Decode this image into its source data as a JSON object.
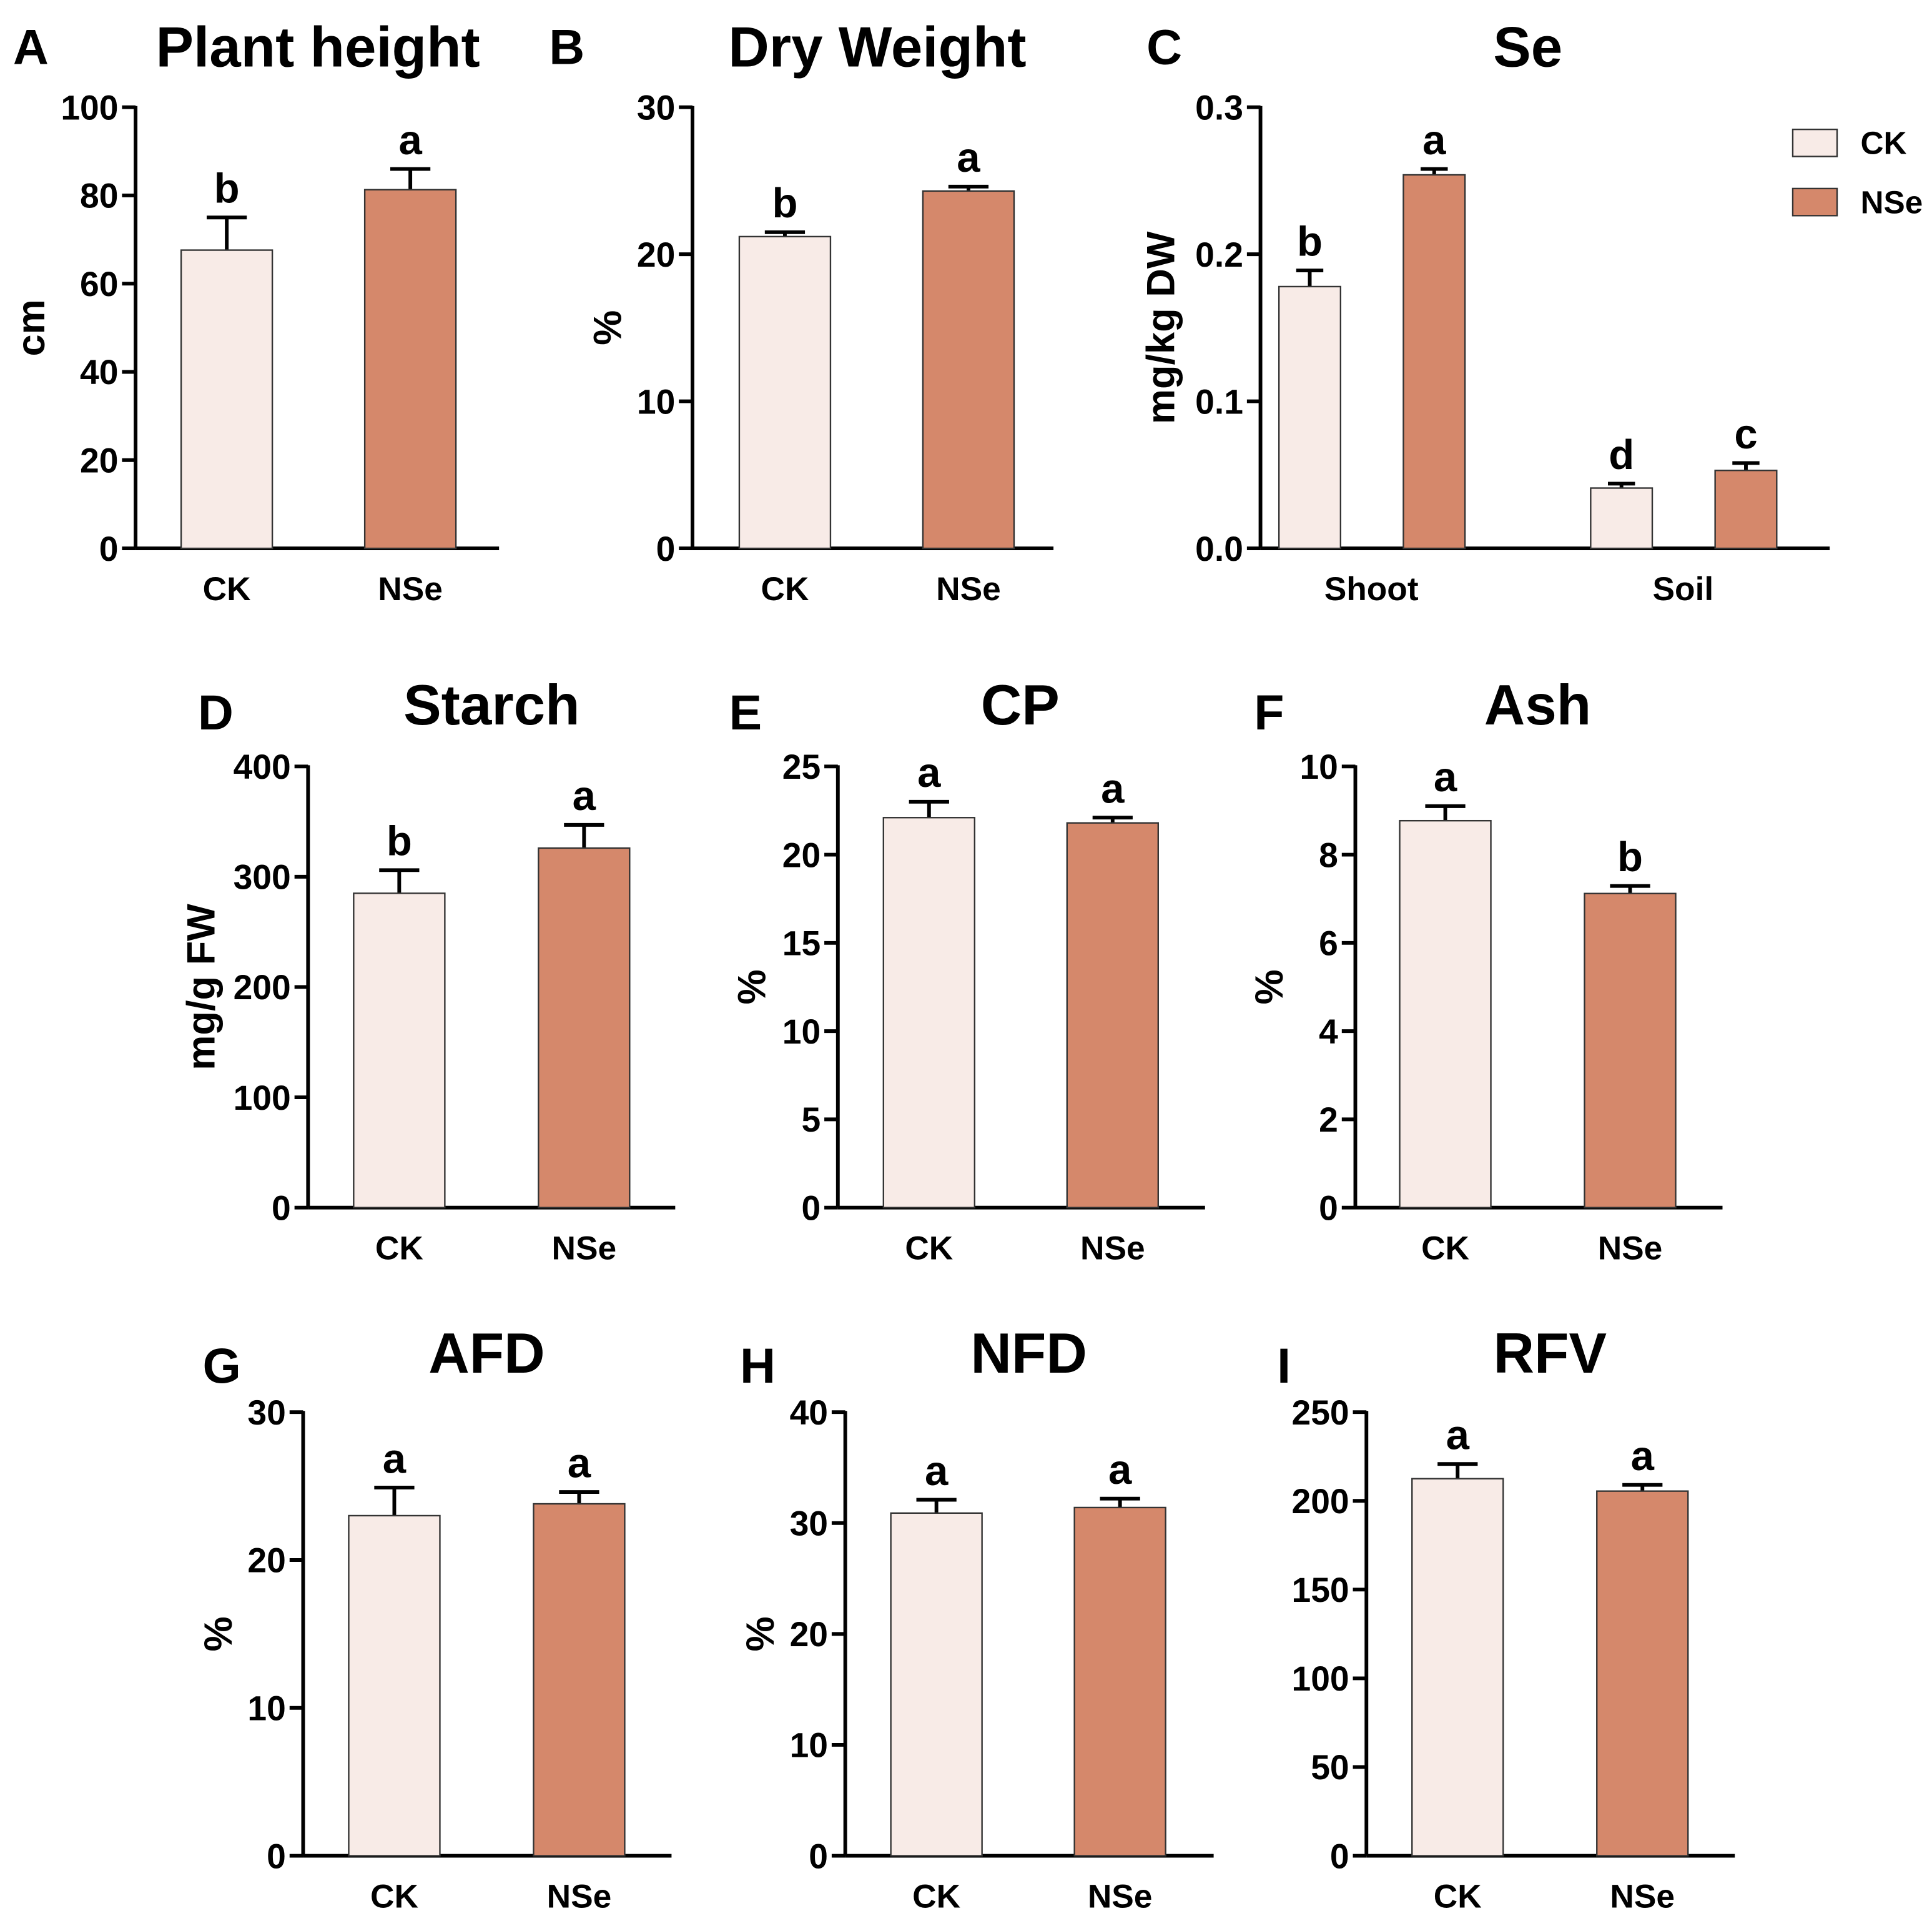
{
  "colors": {
    "CK": "#f8ebe7",
    "NSe": "#d5886b",
    "axis": "#000000"
  },
  "legend": [
    {
      "label": "CK",
      "color": "#f8ebe7"
    },
    {
      "label": "NSe",
      "color": "#d5886b"
    }
  ],
  "chart_data": [
    {
      "type": "bar",
      "panel": "A",
      "title": "Plant height",
      "ylabel": "cm",
      "ylim": [
        0,
        100
      ],
      "yticks": [
        0,
        20,
        40,
        60,
        80,
        100
      ],
      "tick_labels": [
        "0",
        "20",
        "40",
        "60",
        "80",
        "100"
      ],
      "categories": [
        "CK",
        "NSe"
      ],
      "values": [
        67.6,
        81.3
      ],
      "errors": [
        7.4,
        4.7
      ],
      "letters": [
        "b",
        "a"
      ]
    },
    {
      "type": "bar",
      "panel": "B",
      "title": "Dry Weight",
      "ylabel": "%",
      "ylim": [
        0,
        30
      ],
      "yticks": [
        0,
        10,
        20,
        30
      ],
      "tick_labels": [
        "0",
        "10",
        "20",
        "30"
      ],
      "categories": [
        "CK",
        "NSe"
      ],
      "values": [
        21.2,
        24.3
      ],
      "errors": [
        0.3,
        0.3
      ],
      "letters": [
        "b",
        "a"
      ]
    },
    {
      "type": "bar",
      "panel": "C",
      "title": "Se",
      "ylabel": "mg/kg DW",
      "ylim": [
        0,
        0.3
      ],
      "yticks": [
        0,
        0.1,
        0.2,
        0.3
      ],
      "tick_labels": [
        "0.0",
        "0.1",
        "0.2",
        "0.3"
      ],
      "groups": [
        "Shoot",
        "Soil"
      ],
      "series": [
        {
          "name": "CK",
          "values": [
            0.178,
            0.041
          ],
          "errors": [
            0.011,
            0.003
          ],
          "letters": [
            "b",
            "d"
          ]
        },
        {
          "name": "NSe",
          "values": [
            0.254,
            0.053
          ],
          "errors": [
            0.004,
            0.005
          ],
          "letters": [
            "a",
            "c"
          ]
        }
      ]
    },
    {
      "type": "bar",
      "panel": "D",
      "title": "Starch",
      "ylabel": "mg/g FW",
      "ylim": [
        0,
        400
      ],
      "yticks": [
        0,
        100,
        200,
        300,
        400
      ],
      "tick_labels": [
        "0",
        "100",
        "200",
        "300",
        "400"
      ],
      "categories": [
        "CK",
        "NSe"
      ],
      "values": [
        285,
        326
      ],
      "errors": [
        21,
        21
      ],
      "letters": [
        "b",
        "a"
      ]
    },
    {
      "type": "bar",
      "panel": "E",
      "title": "CP",
      "ylabel": "%",
      "ylim": [
        0,
        25
      ],
      "yticks": [
        0,
        5,
        10,
        15,
        20,
        25
      ],
      "tick_labels": [
        "0",
        "5",
        "10",
        "15",
        "20",
        "25"
      ],
      "categories": [
        "CK",
        "NSe"
      ],
      "values": [
        22.1,
        21.8
      ],
      "errors": [
        0.9,
        0.3
      ],
      "letters": [
        "a",
        "a"
      ]
    },
    {
      "type": "bar",
      "panel": "F",
      "title": "Ash",
      "ylabel": "%",
      "ylim": [
        0,
        10
      ],
      "yticks": [
        0,
        2,
        4,
        6,
        8,
        10
      ],
      "tick_labels": [
        "0",
        "2",
        "4",
        "6",
        "8",
        "10"
      ],
      "categories": [
        "CK",
        "NSe"
      ],
      "values": [
        8.77,
        7.12
      ],
      "errors": [
        0.33,
        0.17
      ],
      "letters": [
        "a",
        "b"
      ]
    },
    {
      "type": "bar",
      "panel": "G",
      "title": "AFD",
      "ylabel": "%",
      "ylim": [
        0,
        30
      ],
      "yticks": [
        0,
        10,
        20,
        30
      ],
      "tick_labels": [
        "0",
        "10",
        "20",
        "30"
      ],
      "categories": [
        "CK",
        "NSe"
      ],
      "values": [
        23.0,
        23.8
      ],
      "errors": [
        1.9,
        0.8
      ],
      "letters": [
        "a",
        "a"
      ]
    },
    {
      "type": "bar",
      "panel": "H",
      "title": "NFD",
      "ylabel": "%",
      "ylim": [
        0,
        40
      ],
      "yticks": [
        0,
        10,
        20,
        30,
        40
      ],
      "tick_labels": [
        "0",
        "10",
        "20",
        "30",
        "40"
      ],
      "categories": [
        "CK",
        "NSe"
      ],
      "values": [
        30.9,
        31.4
      ],
      "errors": [
        1.2,
        0.8
      ],
      "letters": [
        "a",
        "a"
      ]
    },
    {
      "type": "bar",
      "panel": "I",
      "title": "RFV",
      "ylabel": "",
      "ylim": [
        0,
        250
      ],
      "yticks": [
        0,
        50,
        100,
        150,
        200,
        250
      ],
      "tick_labels": [
        "0",
        "50",
        "100",
        "150",
        "200",
        "250"
      ],
      "categories": [
        "CK",
        "NSe"
      ],
      "values": [
        212.5,
        205.5
      ],
      "errors": [
        8.3,
        3.5
      ],
      "letters": [
        "a",
        "a"
      ]
    }
  ]
}
